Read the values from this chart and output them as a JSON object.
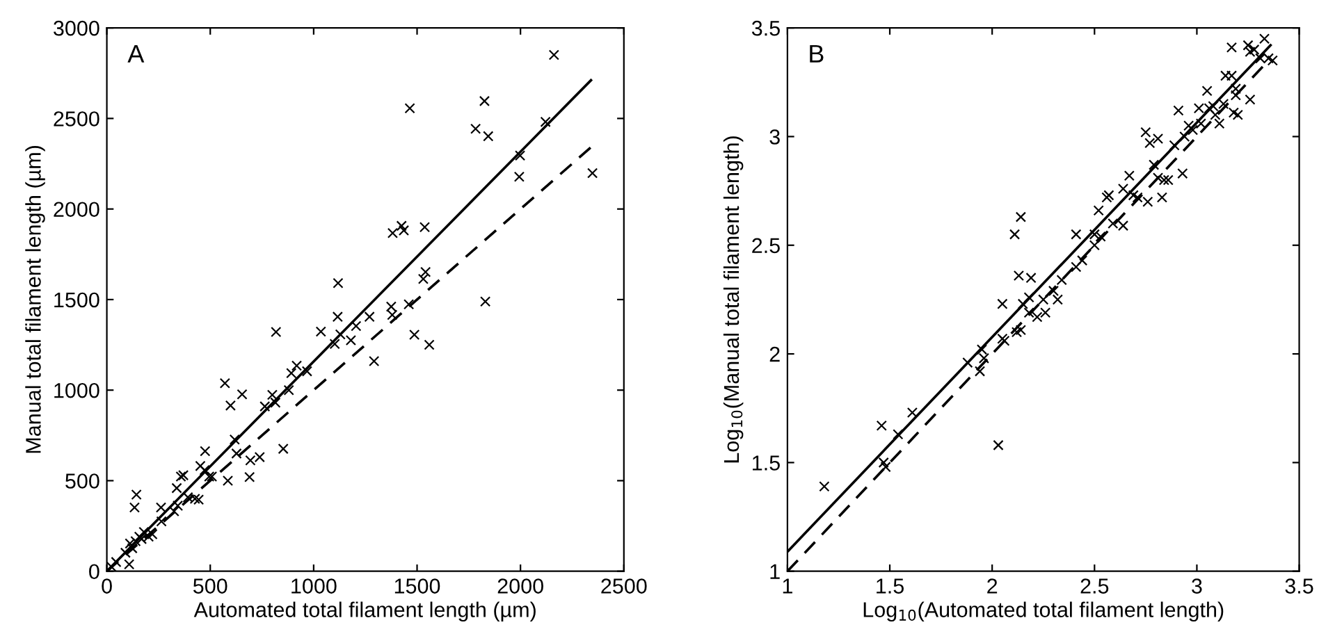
{
  "chart_data": [
    {
      "type": "scatter",
      "xlabel": "Automated total filament length (µm)",
      "ylabel": "Manual total filament length (µm)",
      "annotations": [
        "A"
      ],
      "xlim": [
        0,
        2500
      ],
      "ylim": [
        0,
        3000
      ],
      "xticks": [
        0,
        500,
        1000,
        1500,
        2000,
        2500
      ],
      "yticks": [
        0,
        500,
        1000,
        1500,
        2000,
        2500,
        3000
      ],
      "grid": false,
      "legend": false,
      "series": [
        {
          "color": "#000000",
          "marker": "cross",
          "x": [
            2162,
            1826,
            1465,
            1783,
            1844,
            2121,
            1998,
            1994,
            2348,
            1382,
            1425,
            1436,
            1537,
            1541,
            1530,
            1830,
            1118,
            1375,
            1380,
            1460,
            1487,
            1559,
            1270,
            1205,
            1180,
            1292,
            1116,
            1035,
            1102,
            1129,
            818,
            968,
            918,
            892,
            880,
            815,
            800,
            764,
            571,
            598,
            654,
            618,
            627,
            694,
            739,
            853,
            690,
            585,
            495,
            508,
            473,
            452,
            475,
            370,
            358,
            338,
            426,
            444,
            392,
            343,
            325,
            262,
            264,
            143,
            134,
            220,
            179,
            157,
            139,
            112,
            90,
            108,
            45,
            22,
            4,
            168,
            202,
            123
          ],
          "values": [
            2851,
            2596,
            2556,
            2443,
            2402,
            2481,
            2295,
            2178,
            2198,
            1867,
            1907,
            1882,
            1900,
            1652,
            1614,
            1489,
            1591,
            1461,
            1415,
            1474,
            1306,
            1250,
            1405,
            1354,
            1275,
            1160,
            1405,
            1323,
            1255,
            1308,
            1321,
            1104,
            1135,
            1094,
            1000,
            931,
            974,
            910,
            1038,
            915,
            977,
            727,
            650,
            612,
            630,
            676,
            520,
            500,
            523,
            523,
            558,
            581,
            663,
            530,
            523,
            459,
            400,
            395,
            408,
            362,
            331,
            352,
            275,
            423,
            352,
            204,
            217,
            191,
            166,
            153,
            102,
            38,
            51,
            25,
            0,
            178,
            191,
            127
          ]
        },
        {
          "type": "line",
          "color": "#000000",
          "line_style": "solid",
          "marker": "none",
          "x": [
            0,
            2341
          ],
          "values": [
            0,
            2711
          ]
        },
        {
          "type": "line",
          "color": "#000000",
          "line_style": "dashed",
          "marker": "none",
          "x": [
            0,
            2340
          ],
          "values": [
            0,
            2340
          ]
        }
      ]
    },
    {
      "type": "scatter",
      "xlabel": "Log$_{10}$(Automated total filament length)",
      "ylabel": "Log$_{10}$(Manual total filament length)",
      "annotations": [
        "B"
      ],
      "xlim": [
        1,
        3.5
      ],
      "ylim": [
        1,
        3.5
      ],
      "xticks": [
        1,
        1.5,
        2,
        2.5,
        3,
        3.5
      ],
      "yticks": [
        1,
        1.5,
        2,
        2.5,
        3,
        3.5
      ],
      "grid": false,
      "legend": false,
      "series": [
        {
          "color": "#000000",
          "marker": "cross",
          "x": [
            1.18,
            1.46,
            1.47,
            1.48,
            1.54,
            1.61,
            1.88,
            1.95,
            1.96,
            1.94,
            2.03,
            2.05,
            2.06,
            2.05,
            2.11,
            2.14,
            2.13,
            2.19,
            2.12,
            2.14,
            2.15,
            2.18,
            2.18,
            2.22,
            2.25,
            2.26,
            2.3,
            2.32,
            2.34,
            2.41,
            2.41,
            2.44,
            2.5,
            2.5,
            2.52,
            2.53,
            2.56,
            2.57,
            2.59,
            2.64,
            2.64,
            2.67,
            2.69,
            2.71,
            2.76,
            2.75,
            2.77,
            2.79,
            2.81,
            2.81,
            2.84,
            2.86,
            2.83,
            2.89,
            2.91,
            2.93,
            2.94,
            2.96,
            2.98,
            3.01,
            3.02,
            3.05,
            3.06,
            3.08,
            3.09,
            3.11,
            3.13,
            3.14,
            3.17,
            3.17,
            3.18,
            3.19,
            3.2,
            3.19,
            3.25,
            3.26,
            3.26,
            3.28,
            3.31,
            3.33,
            3.35,
            3.37
          ],
          "values": [
            1.39,
            1.67,
            1.5,
            1.48,
            1.63,
            1.73,
            1.96,
            2.02,
            1.98,
            1.92,
            1.58,
            2.07,
            2.06,
            2.23,
            2.55,
            2.63,
            2.36,
            2.35,
            2.1,
            2.11,
            2.23,
            2.26,
            2.19,
            2.17,
            2.25,
            2.19,
            2.29,
            2.25,
            2.34,
            2.55,
            2.4,
            2.43,
            2.5,
            2.55,
            2.66,
            2.54,
            2.72,
            2.73,
            2.6,
            2.59,
            2.76,
            2.82,
            2.73,
            2.72,
            2.7,
            3.02,
            2.97,
            2.87,
            2.99,
            2.81,
            2.8,
            2.8,
            2.72,
            2.96,
            3.12,
            2.83,
            3.0,
            3.05,
            3.03,
            3.13,
            3.06,
            3.21,
            3.13,
            3.14,
            3.1,
            3.06,
            3.15,
            3.28,
            3.41,
            3.28,
            3.11,
            3.22,
            3.1,
            3.19,
            3.42,
            3.39,
            3.17,
            3.4,
            3.36,
            3.45,
            3.36,
            3.35
          ]
        },
        {
          "type": "line",
          "color": "#000000",
          "line_style": "solid",
          "marker": "none",
          "x": [
            1,
            3.36
          ],
          "values": [
            1.09,
            3.42
          ]
        },
        {
          "type": "line",
          "color": "#000000",
          "line_style": "dashed",
          "marker": "none",
          "x": [
            1,
            3.35
          ],
          "values": [
            1,
            3.35
          ]
        }
      ]
    }
  ]
}
